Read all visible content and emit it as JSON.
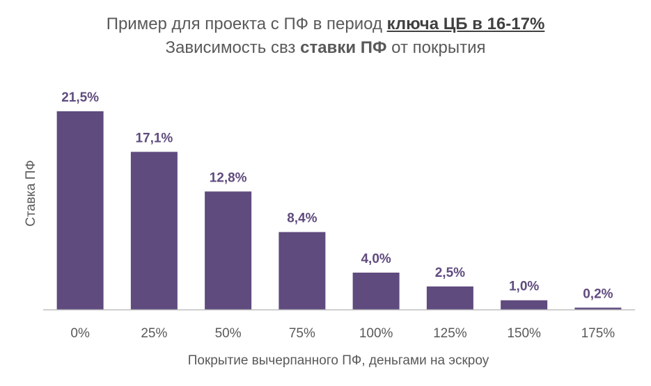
{
  "title": {
    "line1_prefix": "Пример для проекта  с ПФ в период ",
    "line1_highlight": "ключа ЦБ в 16-17%",
    "line2_prefix": "Зависимость свз ",
    "line2_highlight": "ставки ПФ",
    "line2_suffix": " от покрытия"
  },
  "colors": {
    "bar": "#5f4b7e",
    "label": "#5f4b7e",
    "axis": "#bfbfbf"
  },
  "chart_data": {
    "type": "bar",
    "categories": [
      "0%",
      "25%",
      "50%",
      "75%",
      "100%",
      "125%",
      "150%",
      "175%"
    ],
    "values": [
      21.5,
      17.1,
      12.8,
      8.4,
      4.0,
      2.5,
      1.0,
      0.2
    ],
    "data_labels": [
      "21,5%",
      "17,1%",
      "12,8%",
      "8,4%",
      "4,0%",
      "2,5%",
      "1,0%",
      "0,2%"
    ],
    "xlabel": "Покрытие вычерпанного ПФ, деньгами на эскроу",
    "ylabel": "Ставка ПФ",
    "ylim": [
      0,
      21.5
    ],
    "grid": false,
    "legend": "none"
  }
}
